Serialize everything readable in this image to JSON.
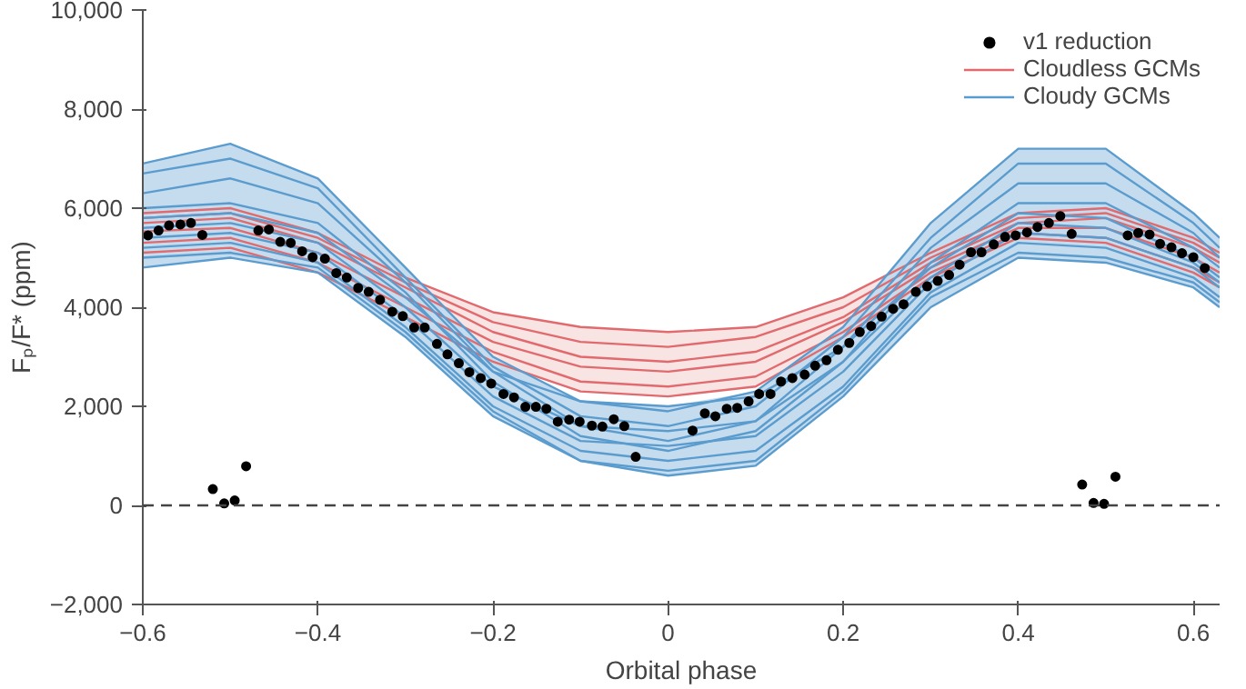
{
  "chart_data": {
    "type": "line",
    "xlabel": "Orbital phase",
    "ylabel": "Fₚ/F* (ppm)",
    "x": [
      -0.6,
      -0.5,
      -0.4,
      -0.3,
      -0.2,
      -0.1,
      0,
      0.1,
      0.2,
      0.3,
      0.4,
      0.5,
      0.6,
      0.63
    ],
    "xlim": [
      -0.6,
      0.63
    ],
    "ylim": [
      -2000,
      10000
    ],
    "xticks": [
      {
        "value": -0.6,
        "label": "−0.6"
      },
      {
        "value": -0.4,
        "label": "−0.4"
      },
      {
        "value": -0.2,
        "label": "−0.2"
      },
      0,
      0.2,
      0.4,
      0.6
    ],
    "yticks": [
      {
        "value": -2000,
        "label": "−2,000"
      },
      0,
      {
        "value": 2000,
        "label": "2,000"
      },
      {
        "value": 4000,
        "label": "4,000"
      },
      {
        "value": 6000,
        "label": "6,000"
      },
      {
        "value": 8000,
        "label": "8,000"
      },
      {
        "value": 10000,
        "label": "10,000"
      }
    ],
    "series": [
      {
        "name": "v1 reduction",
        "type": "scatter",
        "color": "#000000",
        "marker": "circle",
        "x": [
          -0.594,
          -0.582,
          -0.57,
          -0.557,
          -0.545,
          -0.532,
          -0.52,
          -0.507,
          -0.495,
          -0.482,
          -0.468,
          -0.456,
          -0.443,
          -0.431,
          -0.418,
          -0.406,
          -0.392,
          -0.379,
          -0.367,
          -0.354,
          -0.342,
          -0.329,
          -0.315,
          -0.303,
          -0.29,
          -0.278,
          -0.264,
          -0.252,
          -0.239,
          -0.227,
          -0.214,
          -0.202,
          -0.188,
          -0.176,
          -0.163,
          -0.151,
          -0.139,
          -0.126,
          -0.113,
          -0.101,
          -0.087,
          -0.075,
          -0.062,
          -0.05,
          -0.037,
          0.028,
          0.042,
          0.054,
          0.067,
          0.079,
          0.092,
          0.104,
          0.117,
          0.129,
          0.142,
          0.156,
          0.168,
          0.181,
          0.194,
          0.207,
          0.219,
          0.232,
          0.244,
          0.257,
          0.269,
          0.283,
          0.296,
          0.308,
          0.321,
          0.333,
          0.346,
          0.358,
          0.372,
          0.385,
          0.397,
          0.41,
          0.422,
          0.435,
          0.448,
          0.461,
          0.473,
          0.486,
          0.498,
          0.511,
          0.525,
          0.537,
          0.55,
          0.562,
          0.575,
          0.587,
          0.6,
          0.613
        ],
        "values": [
          5450,
          5550,
          5650,
          5670,
          5700,
          5460,
          330,
          40,
          100,
          790,
          5550,
          5570,
          5320,
          5300,
          5130,
          5010,
          4980,
          4690,
          4600,
          4390,
          4310,
          4150,
          3910,
          3820,
          3590,
          3590,
          3260,
          3050,
          2870,
          2690,
          2570,
          2460,
          2250,
          2180,
          1990,
          1990,
          1950,
          1690,
          1730,
          1690,
          1610,
          1590,
          1740,
          1600,
          980,
          1510,
          1860,
          1800,
          1950,
          1970,
          2100,
          2250,
          2250,
          2500,
          2570,
          2640,
          2820,
          2930,
          3140,
          3280,
          3500,
          3620,
          3810,
          3970,
          4060,
          4310,
          4420,
          4530,
          4650,
          4860,
          5110,
          5110,
          5270,
          5420,
          5450,
          5510,
          5620,
          5700,
          5840,
          5480,
          420,
          50,
          30,
          580,
          5450,
          5500,
          5470,
          5280,
          5210,
          5090,
          5010,
          4790
        ]
      },
      {
        "name": "Cloudless GCMs",
        "color": "#e06a6e",
        "values": [
          5900,
          6000,
          5500,
          4600,
          3900,
          3600,
          3500,
          3600,
          4200,
          5100,
          5900,
          6000,
          5400,
          5100
        ],
        "lower": [
          5100,
          5200,
          4700,
          3800,
          2900,
          2300,
          2200,
          2400,
          3400,
          4600,
          5400,
          5300,
          4700,
          4400
        ],
        "upper": [
          5900,
          6000,
          5500,
          4600,
          3900,
          3600,
          3500,
          3600,
          4200,
          5100,
          5900,
          6000,
          5400,
          5100
        ]
      },
      {
        "color": "#e06a6e",
        "values": [
          5800,
          5900,
          5400,
          4500,
          3700,
          3300,
          3200,
          3400,
          4000,
          5000,
          5800,
          5900,
          5300,
          5000
        ]
      },
      {
        "color": "#e06a6e",
        "values": [
          5700,
          5800,
          5300,
          4400,
          3500,
          3000,
          2900,
          3100,
          3800,
          4900,
          5700,
          5800,
          5200,
          4900
        ]
      },
      {
        "color": "#e06a6e",
        "values": [
          5530,
          5600,
          5100,
          4200,
          3300,
          2800,
          2700,
          2900,
          3700,
          4800,
          5600,
          5600,
          5000,
          4700
        ]
      },
      {
        "color": "#e06a6e",
        "values": [
          5300,
          5400,
          4900,
          4000,
          3100,
          2500,
          2400,
          2600,
          3500,
          4700,
          5500,
          5400,
          4800,
          4500
        ]
      },
      {
        "color": "#e06a6e",
        "values": [
          5100,
          5200,
          4700,
          3800,
          2900,
          2300,
          2200,
          2400,
          3400,
          4600,
          5400,
          5300,
          4700,
          4400
        ]
      },
      {
        "name": "Cloudy GCMs",
        "color": "#5b9ccf",
        "values": [
          6900,
          7300,
          6600,
          4800,
          3000,
          2100,
          1900,
          2300,
          3600,
          5700,
          7200,
          7200,
          5900,
          5400
        ],
        "lower": [
          4800,
          5000,
          4700,
          3400,
          1800,
          900,
          600,
          800,
          2200,
          4000,
          5000,
          4900,
          4400,
          4000
        ],
        "upper": [
          6900,
          7300,
          6600,
          4800,
          3000,
          2100,
          2000,
          2300,
          3600,
          5700,
          7200,
          7200,
          5900,
          5400
        ]
      },
      {
        "color": "#5b9ccf",
        "values": [
          6700,
          7000,
          6400,
          4600,
          2800,
          1800,
          1600,
          2000,
          3400,
          5400,
          6900,
          6900,
          5700,
          5200
        ]
      },
      {
        "color": "#5b9ccf",
        "values": [
          6300,
          6600,
          6100,
          4500,
          2700,
          1600,
          1300,
          1700,
          3200,
          5200,
          6500,
          6500,
          5500,
          5000
        ]
      },
      {
        "color": "#5b9ccf",
        "values": [
          6000,
          6100,
          5700,
          4300,
          2500,
          1400,
          1100,
          1500,
          2900,
          4900,
          6100,
          6100,
          5200,
          4800
        ]
      },
      {
        "color": "#5b9ccf",
        "values": [
          5800,
          5900,
          5500,
          4200,
          2700,
          2100,
          2000,
          2200,
          3200,
          4800,
          5900,
          5800,
          5000,
          4600
        ]
      },
      {
        "color": "#5b9ccf",
        "values": [
          5600,
          5700,
          5300,
          4000,
          2400,
          1600,
          1500,
          1700,
          2900,
          4600,
          5700,
          5600,
          4900,
          4500
        ]
      },
      {
        "color": "#5b9ccf",
        "values": [
          5400,
          5500,
          5100,
          3800,
          2200,
          1300,
          1200,
          1400,
          2700,
          4500,
          5500,
          5400,
          4800,
          4400
        ]
      },
      {
        "color": "#5b9ccf",
        "values": [
          5200,
          5300,
          4900,
          3600,
          2000,
          1100,
          900,
          1100,
          2400,
          4300,
          5300,
          5200,
          4600,
          4200
        ]
      },
      {
        "color": "#5b9ccf",
        "values": [
          5000,
          5100,
          4800,
          3500,
          1900,
          900,
          700,
          900,
          2300,
          4200,
          5100,
          5000,
          4500,
          4100
        ]
      },
      {
        "color": "#5b9ccf",
        "values": [
          4800,
          5000,
          4700,
          3400,
          1800,
          900,
          600,
          800,
          2200,
          4000,
          5000,
          4900,
          4400,
          4000
        ]
      }
    ],
    "ref_lines": [
      {
        "axis": "y",
        "value": 0,
        "color": "#444444",
        "line_style": "dashed"
      }
    ],
    "grid": false,
    "legend": "top right",
    "line_style": "solid"
  }
}
